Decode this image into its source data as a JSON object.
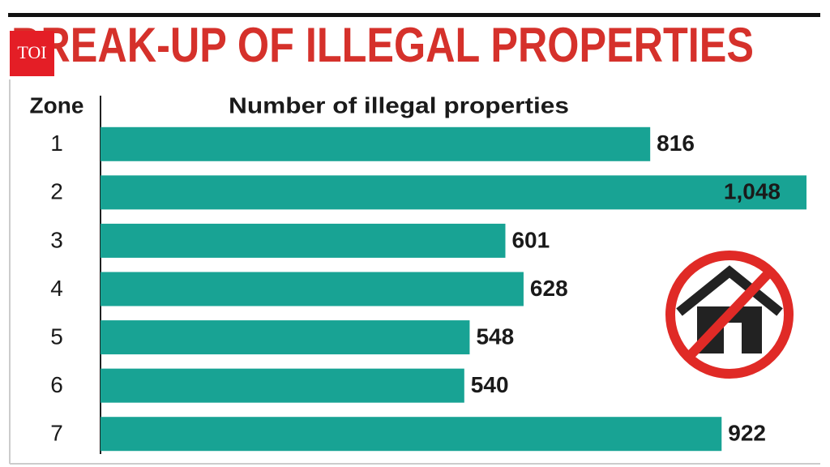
{
  "logo": "TOI",
  "chart_data": {
    "type": "bar",
    "orientation": "horizontal",
    "title": "BREAK-UP OF ILLEGAL PROPERTIES",
    "category_axis_label": "Zone",
    "value_axis_label": "Number of illegal properties",
    "categories": [
      "1",
      "2",
      "3",
      "4",
      "5",
      "6",
      "7"
    ],
    "values": [
      816,
      1048,
      601,
      628,
      548,
      540,
      922
    ],
    "value_labels": [
      "816",
      "1,048",
      "601",
      "628",
      "548",
      "540",
      "922"
    ],
    "color": "#18a394"
  }
}
